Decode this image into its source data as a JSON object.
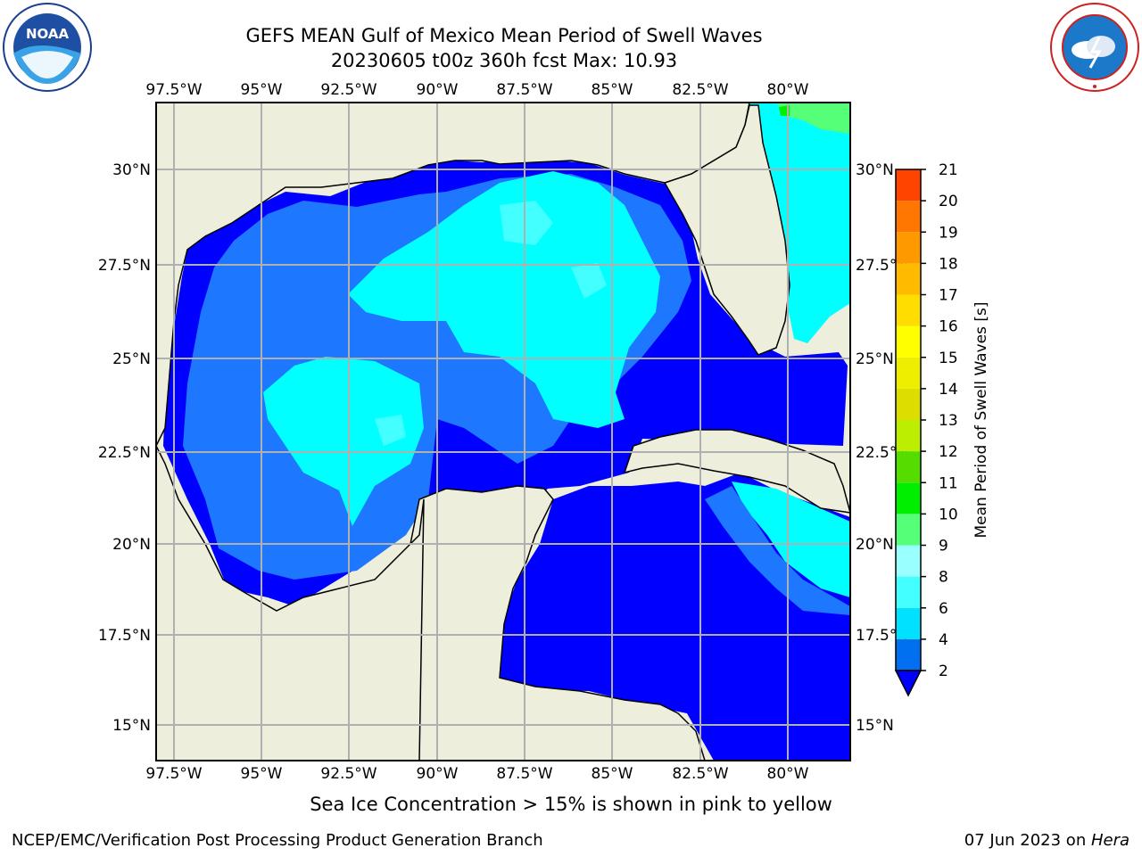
{
  "header": {
    "title_line1": "GEFS MEAN Gulf of Mexico Mean Period of Swell Waves",
    "title_line2": "20230605 t00z 360h fcst   Max: 10.93"
  },
  "logos": {
    "noaa_text": "NOAA",
    "noaa_ring_text": "NATIONAL OCEANIC AND ATMOSPHERIC ADMINISTRATION · U.S. DEPARTMENT OF COMMERCE",
    "nws_ring_text": "NATIONAL WEATHER SERVICE"
  },
  "map": {
    "lon_ticks": [
      "97.5°W",
      "95°W",
      "92.5°W",
      "90°W",
      "87.5°W",
      "85°W",
      "82.5°W",
      "80°W"
    ],
    "lat_ticks": [
      "30°N",
      "27.5°N",
      "25°N",
      "22.5°N",
      "20°N",
      "17.5°N",
      "15°N"
    ],
    "colors": {
      "land": "#eeeedd",
      "grid": "#b0b0b0",
      "band_2_4": "#0000ff",
      "band_4_6": "#1e78ff",
      "band_6_8": "#00ffff",
      "band_8_9": "#44ffff",
      "band_9_10": "#99ffff",
      "band_10_11": "#55ff77",
      "band_11_12": "#00ee00"
    }
  },
  "colorbar": {
    "label": "Mean Period of Swell Waves [s]",
    "ticks": [
      "2",
      "4",
      "6",
      "8",
      "9",
      "10",
      "11",
      "12",
      "13",
      "14",
      "15",
      "16",
      "17",
      "18",
      "19",
      "20",
      "21"
    ],
    "colors": [
      "#0070f0",
      "#00e0ff",
      "#44ffff",
      "#99ffff",
      "#55ff77",
      "#00ee00",
      "#55dd00",
      "#bbee00",
      "#dddd00",
      "#eeee00",
      "#ffff00",
      "#ffdd00",
      "#ffbb00",
      "#ff9900",
      "#ff7700",
      "#ff4400",
      "#ff0000"
    ]
  },
  "notes": {
    "ice": "Sea Ice Concentration > 15% is shown in pink to yellow"
  },
  "footer": {
    "left": "NCEP/EMC/Verification Post Processing Product Generation Branch",
    "right_prefix": "07 Jun 2023 on ",
    "right_host": "Hera"
  }
}
